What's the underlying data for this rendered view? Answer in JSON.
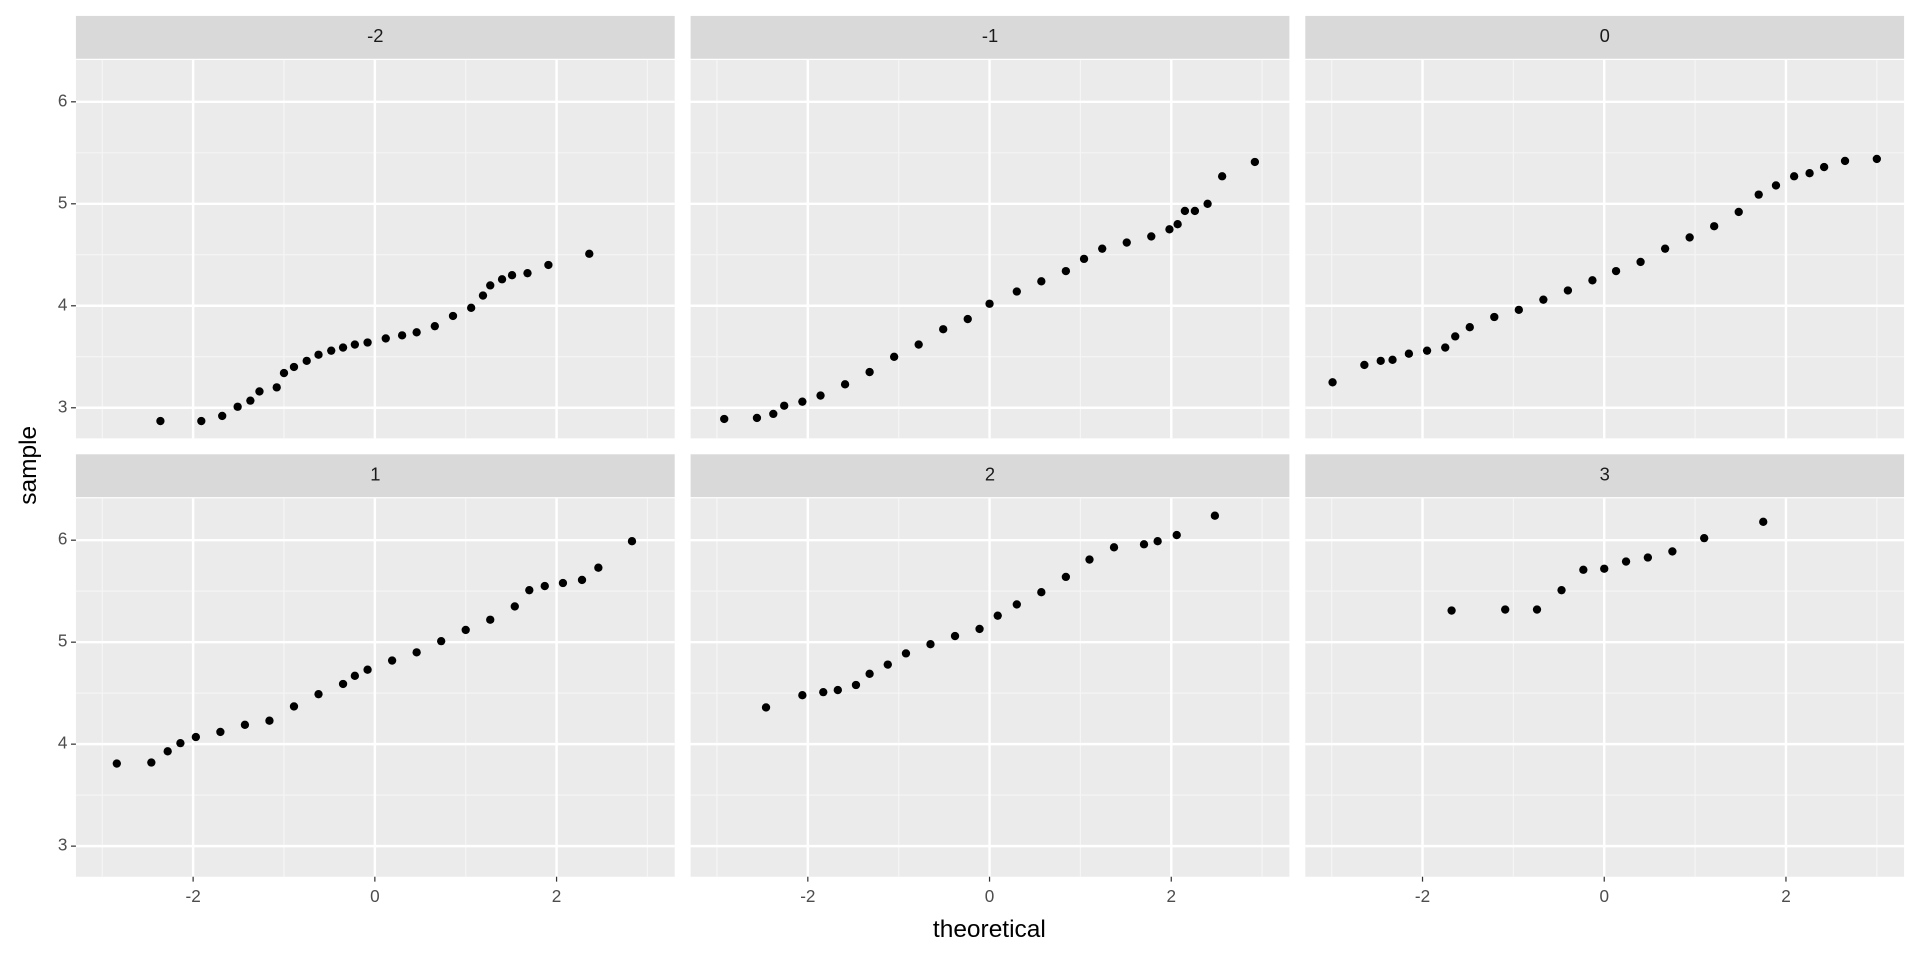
{
  "chart_data": {
    "type": "scatter",
    "xlabel": "theoretical",
    "ylabel": "sample",
    "xlim": [
      -3.29,
      3.3
    ],
    "ylim": [
      2.7,
      6.41
    ],
    "xticks": [
      -2,
      0,
      2
    ],
    "yticks": [
      3,
      4,
      5,
      6
    ],
    "grid": true,
    "color": "#000000",
    "facets": [
      {
        "title": "-2",
        "x": [
          -2.36,
          -1.91,
          -1.68,
          -1.51,
          -1.37,
          -1.27,
          -1.08,
          -1.0,
          -0.89,
          -0.75,
          -0.62,
          -0.48,
          -0.35,
          -0.22,
          -0.08,
          0.12,
          0.3,
          0.46,
          0.66,
          0.86,
          1.06,
          1.19,
          1.27,
          1.4,
          1.51,
          1.68,
          1.91,
          2.36
        ],
        "y": [
          2.87,
          2.87,
          2.92,
          3.01,
          3.07,
          3.16,
          3.2,
          3.34,
          3.4,
          3.46,
          3.52,
          3.56,
          3.59,
          3.62,
          3.64,
          3.68,
          3.71,
          3.74,
          3.8,
          3.9,
          3.98,
          4.1,
          4.2,
          4.26,
          4.3,
          4.32,
          4.4,
          4.51
        ]
      },
      {
        "title": "-1",
        "x": [
          -2.92,
          -2.56,
          -2.38,
          -2.26,
          -2.06,
          -1.86,
          -1.59,
          -1.32,
          -1.05,
          -0.78,
          -0.51,
          -0.24,
          0.0,
          0.3,
          0.57,
          0.84,
          1.04,
          1.24,
          1.51,
          1.78,
          1.98,
          2.07,
          2.15,
          2.26,
          2.4,
          2.56,
          2.92
        ],
        "y": [
          2.89,
          2.9,
          2.94,
          3.02,
          3.06,
          3.12,
          3.23,
          3.35,
          3.5,
          3.62,
          3.77,
          3.87,
          4.02,
          4.14,
          4.24,
          4.34,
          4.46,
          4.56,
          4.62,
          4.68,
          4.75,
          4.8,
          4.93,
          4.93,
          5.0,
          5.27,
          5.41
        ]
      },
      {
        "title": "0",
        "x": [
          -2.99,
          -2.64,
          -2.46,
          -2.33,
          -2.15,
          -1.95,
          -1.75,
          -1.64,
          -1.48,
          -1.21,
          -0.94,
          -0.67,
          -0.4,
          -0.13,
          0.13,
          0.4,
          0.67,
          0.94,
          1.21,
          1.48,
          1.7,
          1.89,
          2.09,
          2.26,
          2.42,
          2.65,
          3.0
        ],
        "y": [
          3.25,
          3.42,
          3.46,
          3.47,
          3.53,
          3.56,
          3.59,
          3.7,
          3.79,
          3.89,
          3.96,
          4.06,
          4.15,
          4.25,
          4.34,
          4.43,
          4.56,
          4.67,
          4.78,
          4.92,
          5.09,
          5.18,
          5.27,
          5.3,
          5.36,
          5.42,
          5.44
        ]
      },
      {
        "title": "1",
        "x": [
          -2.84,
          -2.46,
          -2.28,
          -2.14,
          -1.97,
          -1.7,
          -1.43,
          -1.16,
          -0.89,
          -0.62,
          -0.35,
          -0.22,
          -0.08,
          0.19,
          0.46,
          0.73,
          1.0,
          1.27,
          1.54,
          1.7,
          1.87,
          2.07,
          2.28,
          2.46,
          2.83
        ],
        "y": [
          3.81,
          3.82,
          3.93,
          4.01,
          4.07,
          4.12,
          4.19,
          4.23,
          4.37,
          4.49,
          4.59,
          4.67,
          4.73,
          4.82,
          4.9,
          5.01,
          5.12,
          5.22,
          5.35,
          5.51,
          5.55,
          5.58,
          5.61,
          5.73,
          5.99
        ]
      },
      {
        "title": "2",
        "x": [
          -2.46,
          -2.06,
          -1.83,
          -1.67,
          -1.47,
          -1.32,
          -1.12,
          -0.92,
          -0.65,
          -0.38,
          -0.11,
          0.09,
          0.3,
          0.57,
          0.84,
          1.1,
          1.37,
          1.7,
          1.85,
          2.06,
          2.48
        ],
        "y": [
          4.36,
          4.48,
          4.51,
          4.53,
          4.58,
          4.69,
          4.78,
          4.89,
          4.98,
          5.06,
          5.13,
          5.26,
          5.37,
          5.49,
          5.64,
          5.81,
          5.93,
          5.96,
          5.99,
          6.05,
          6.24
        ]
      },
      {
        "title": "3",
        "x": [
          -1.68,
          -1.09,
          -0.74,
          -0.47,
          -0.23,
          0.0,
          0.24,
          0.48,
          0.75,
          1.1,
          1.75
        ],
        "y": [
          5.31,
          5.32,
          5.32,
          5.51,
          5.71,
          5.72,
          5.79,
          5.83,
          5.89,
          6.02,
          6.18
        ]
      }
    ]
  }
}
